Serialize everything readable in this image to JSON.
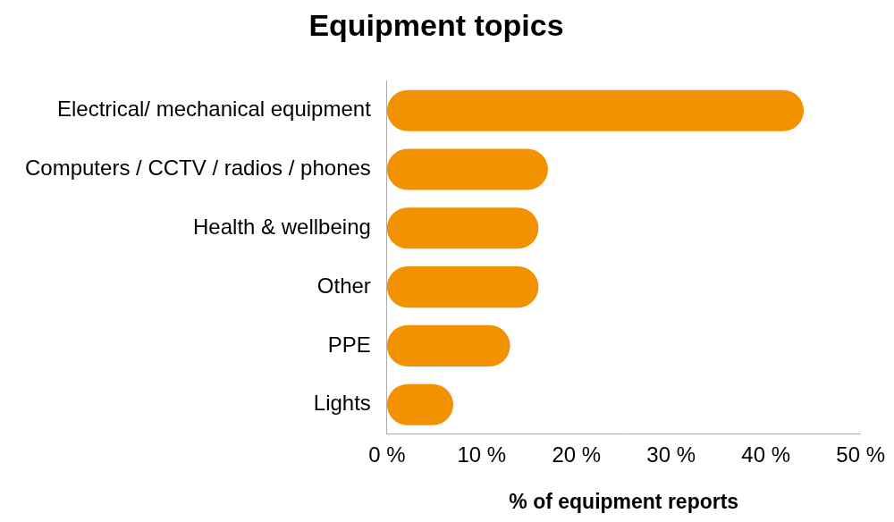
{
  "chart_data": {
    "type": "bar",
    "title": "Equipment topics",
    "orientation": "horizontal",
    "categories": [
      "Electrical/ mechanical equipment",
      "Computers / CCTV / radios / phones",
      "Health & wellbeing",
      "Other",
      "PPE",
      "Lights"
    ],
    "values": [
      44,
      17,
      16,
      16,
      13,
      7
    ],
    "color": "#f39200",
    "xlabel": "% of equipment reports",
    "xlim": [
      0,
      50
    ],
    "xticks": [
      {
        "value": 0,
        "label": "0 %"
      },
      {
        "value": 10,
        "label": "10 %"
      },
      {
        "value": 20,
        "label": "20 %"
      },
      {
        "value": 30,
        "label": "30 %"
      },
      {
        "value": 40,
        "label": "40 %"
      },
      {
        "value": 50,
        "label": "50 %"
      }
    ],
    "grid": false
  }
}
